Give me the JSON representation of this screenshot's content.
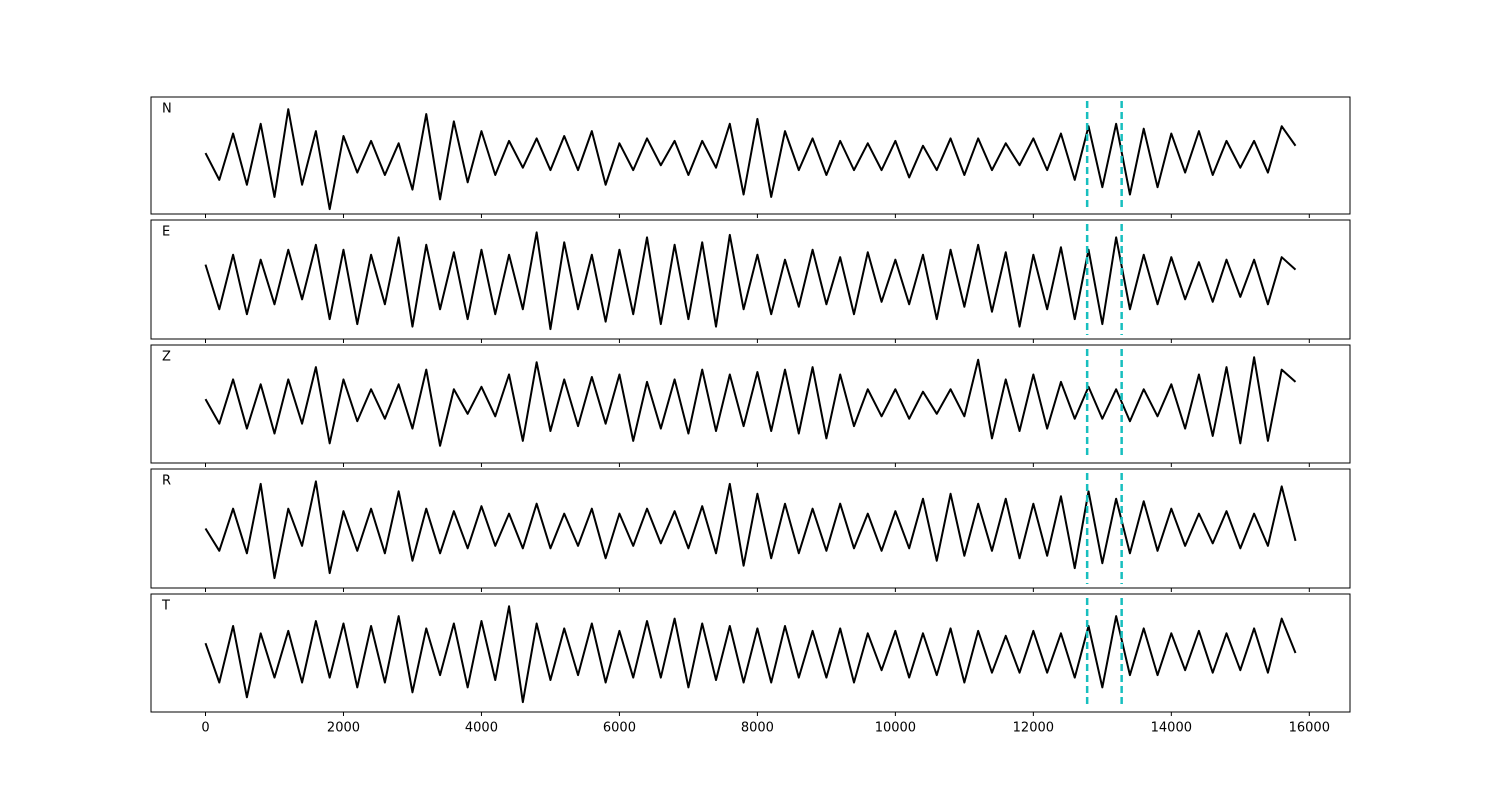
{
  "chart_data": {
    "type": "line",
    "x": [
      0,
      200,
      400,
      600,
      800,
      1000,
      1200,
      1400,
      1600,
      1800,
      2000,
      2200,
      2400,
      2600,
      2800,
      3000,
      3200,
      3400,
      3600,
      3800,
      4000,
      4200,
      4400,
      4600,
      4800,
      5000,
      5200,
      5400,
      5600,
      5800,
      6000,
      6200,
      6400,
      6600,
      6800,
      7000,
      7200,
      7400,
      7600,
      7800,
      8000,
      8200,
      8400,
      8600,
      8800,
      9000,
      9200,
      9400,
      9600,
      9800,
      10000,
      10200,
      10400,
      10600,
      10800,
      11000,
      11200,
      11400,
      11600,
      11800,
      12000,
      12200,
      12400,
      12600,
      12800,
      13000,
      13200,
      13400,
      13600,
      13800,
      14000,
      14200,
      14400,
      14600,
      14800,
      15000,
      15200,
      15400,
      15600,
      15800
    ],
    "xlim": [
      -790,
      16590
    ],
    "xticks": [
      0,
      2000,
      4000,
      6000,
      8000,
      10000,
      12000,
      14000,
      16000
    ],
    "ylim": [
      -1.2,
      1.2
    ],
    "vlines": [
      12780,
      13280
    ],
    "vline_color": "#17bfbf",
    "series": [
      {
        "name": "N",
        "color": "#000000",
        "values": [
          0.05,
          -0.5,
          0.45,
          -0.6,
          0.65,
          -0.85,
          0.95,
          -0.6,
          0.5,
          -1.1,
          0.4,
          -0.35,
          0.3,
          -0.4,
          0.25,
          -0.7,
          0.85,
          -0.9,
          0.7,
          -0.55,
          0.5,
          -0.4,
          0.3,
          -0.25,
          0.35,
          -0.3,
          0.4,
          -0.3,
          0.5,
          -0.6,
          0.25,
          -0.3,
          0.35,
          -0.2,
          0.3,
          -0.4,
          0.3,
          -0.25,
          0.65,
          -0.8,
          0.75,
          -0.85,
          0.5,
          -0.3,
          0.35,
          -0.4,
          0.3,
          -0.3,
          0.25,
          -0.3,
          0.3,
          -0.45,
          0.2,
          -0.3,
          0.35,
          -0.4,
          0.35,
          -0.3,
          0.25,
          -0.2,
          0.35,
          -0.3,
          0.45,
          -0.5,
          0.6,
          -0.65,
          0.65,
          -0.8,
          0.55,
          -0.65,
          0.45,
          -0.35,
          0.5,
          -0.4,
          0.3,
          -0.25,
          0.3,
          -0.35,
          0.6,
          0.2
        ]
      },
      {
        "name": "E",
        "color": "#000000",
        "values": [
          0.3,
          -0.6,
          0.5,
          -0.7,
          0.4,
          -0.5,
          0.6,
          -0.4,
          0.7,
          -0.8,
          0.6,
          -0.9,
          0.5,
          -0.5,
          0.85,
          -0.95,
          0.7,
          -0.6,
          0.55,
          -0.8,
          0.6,
          -0.7,
          0.5,
          -0.6,
          0.95,
          -1.0,
          0.75,
          -0.6,
          0.5,
          -0.85,
          0.6,
          -0.7,
          0.85,
          -0.9,
          0.7,
          -0.8,
          0.75,
          -0.95,
          0.9,
          -0.6,
          0.5,
          -0.7,
          0.4,
          -0.55,
          0.6,
          -0.5,
          0.45,
          -0.7,
          0.55,
          -0.45,
          0.4,
          -0.5,
          0.5,
          -0.8,
          0.6,
          -0.55,
          0.7,
          -0.65,
          0.55,
          -0.95,
          0.5,
          -0.6,
          0.65,
          -0.8,
          0.6,
          -0.9,
          0.85,
          -0.6,
          0.5,
          -0.5,
          0.45,
          -0.4,
          0.35,
          -0.45,
          0.4,
          -0.35,
          0.4,
          -0.5,
          0.45,
          0.2
        ]
      },
      {
        "name": "Z",
        "color": "#000000",
        "values": [
          0.1,
          -0.4,
          0.5,
          -0.5,
          0.4,
          -0.6,
          0.5,
          -0.4,
          0.75,
          -0.8,
          0.5,
          -0.35,
          0.3,
          -0.3,
          0.4,
          -0.5,
          0.7,
          -0.85,
          0.3,
          -0.2,
          0.35,
          -0.25,
          0.6,
          -0.75,
          0.85,
          -0.55,
          0.5,
          -0.45,
          0.55,
          -0.4,
          0.6,
          -0.75,
          0.45,
          -0.5,
          0.5,
          -0.6,
          0.7,
          -0.55,
          0.6,
          -0.45,
          0.65,
          -0.55,
          0.7,
          -0.6,
          0.75,
          -0.7,
          0.6,
          -0.45,
          0.3,
          -0.25,
          0.3,
          -0.3,
          0.25,
          -0.2,
          0.3,
          -0.25,
          0.9,
          -0.7,
          0.5,
          -0.55,
          0.6,
          -0.5,
          0.45,
          -0.3,
          0.35,
          -0.3,
          0.3,
          -0.35,
          0.3,
          -0.25,
          0.4,
          -0.5,
          0.6,
          -0.65,
          0.75,
          -0.8,
          0.95,
          -0.75,
          0.7,
          0.45
        ]
      },
      {
        "name": "R",
        "color": "#000000",
        "values": [
          0.0,
          -0.45,
          0.4,
          -0.5,
          0.9,
          -1.0,
          0.4,
          -0.35,
          0.95,
          -0.9,
          0.35,
          -0.45,
          0.4,
          -0.5,
          0.75,
          -0.65,
          0.4,
          -0.5,
          0.35,
          -0.4,
          0.45,
          -0.35,
          0.3,
          -0.4,
          0.5,
          -0.4,
          0.3,
          -0.35,
          0.4,
          -0.6,
          0.3,
          -0.35,
          0.4,
          -0.3,
          0.35,
          -0.4,
          0.45,
          -0.5,
          0.9,
          -0.75,
          0.7,
          -0.6,
          0.5,
          -0.5,
          0.4,
          -0.45,
          0.5,
          -0.4,
          0.3,
          -0.45,
          0.35,
          -0.4,
          0.6,
          -0.65,
          0.7,
          -0.55,
          0.5,
          -0.45,
          0.6,
          -0.6,
          0.5,
          -0.55,
          0.65,
          -0.8,
          0.75,
          -0.7,
          0.6,
          -0.5,
          0.55,
          -0.45,
          0.4,
          -0.35,
          0.3,
          -0.3,
          0.35,
          -0.4,
          0.3,
          -0.35,
          0.85,
          -0.25
        ]
      },
      {
        "name": "T",
        "color": "#000000",
        "values": [
          0.2,
          -0.6,
          0.55,
          -0.9,
          0.4,
          -0.5,
          0.45,
          -0.6,
          0.65,
          -0.5,
          0.6,
          -0.7,
          0.55,
          -0.6,
          0.75,
          -0.8,
          0.5,
          -0.45,
          0.6,
          -0.7,
          0.65,
          -0.55,
          0.95,
          -1.0,
          0.6,
          -0.55,
          0.5,
          -0.45,
          0.6,
          -0.6,
          0.45,
          -0.5,
          0.65,
          -0.5,
          0.7,
          -0.7,
          0.6,
          -0.55,
          0.55,
          -0.6,
          0.5,
          -0.6,
          0.55,
          -0.5,
          0.45,
          -0.5,
          0.5,
          -0.6,
          0.4,
          -0.35,
          0.45,
          -0.5,
          0.4,
          -0.45,
          0.5,
          -0.6,
          0.45,
          -0.4,
          0.35,
          -0.4,
          0.45,
          -0.4,
          0.4,
          -0.5,
          0.55,
          -0.7,
          0.75,
          -0.45,
          0.5,
          -0.45,
          0.4,
          -0.35,
          0.45,
          -0.4,
          0.4,
          -0.35,
          0.5,
          -0.4,
          0.7,
          0.0
        ]
      }
    ]
  }
}
